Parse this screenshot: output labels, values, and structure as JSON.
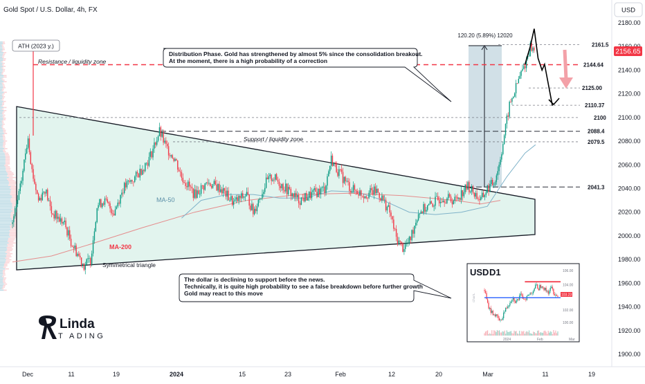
{
  "header": {
    "symbol": "Gold Spot / U.S. Dollar, 4h, FX",
    "currency": "USD"
  },
  "colors": {
    "up": "#089981",
    "down": "#f23645",
    "triangle_fill": "#e2f4ee",
    "box_fill": "#c9dbe3",
    "ma50": "#7fb2c9",
    "ma200": "#e58c8c",
    "price_tag": "#f23645",
    "resistance": "#f23645",
    "arrow_pink": "#f3a1a8"
  },
  "chart_data": {
    "type": "candlestick",
    "ylim": [
      1890,
      2185
    ],
    "yticks": [
      "2180.00",
      "2160.00",
      "2140.00",
      "2120.00",
      "2100.00",
      "2080.00",
      "2060.00",
      "2040.00",
      "2020.00",
      "2000.00",
      "1980.00",
      "1960.00",
      "1940.00",
      "1920.00",
      "1900.00"
    ],
    "xticks": [
      "Dec",
      "11",
      "19",
      "2024",
      "15",
      "23",
      "Feb",
      "12",
      "20",
      "Mar",
      "11",
      "19"
    ],
    "last_price": "2156.65",
    "price_path": [
      [
        0,
        2010
      ],
      [
        6,
        2040
      ],
      [
        10,
        2070
      ],
      [
        12,
        2085
      ],
      [
        15,
        2055
      ],
      [
        20,
        2030
      ],
      [
        25,
        2040
      ],
      [
        30,
        2020
      ],
      [
        40,
        2010
      ],
      [
        45,
        1995
      ],
      [
        50,
        1985
      ],
      [
        55,
        1975
      ],
      [
        60,
        1980
      ],
      [
        65,
        2025
      ],
      [
        70,
        2030
      ],
      [
        78,
        2020
      ],
      [
        85,
        2040
      ],
      [
        95,
        2050
      ],
      [
        105,
        2065
      ],
      [
        113,
        2088
      ],
      [
        118,
        2075
      ],
      [
        125,
        2065
      ],
      [
        130,
        2050
      ],
      [
        140,
        2035
      ],
      [
        150,
        2045
      ],
      [
        160,
        2040
      ],
      [
        170,
        2028
      ],
      [
        180,
        2035
      ],
      [
        185,
        2020
      ],
      [
        195,
        2045
      ],
      [
        200,
        2050
      ],
      [
        210,
        2040
      ],
      [
        220,
        2030
      ],
      [
        230,
        2035
      ],
      [
        240,
        2040
      ],
      [
        245,
        2065
      ],
      [
        250,
        2055
      ],
      [
        260,
        2040
      ],
      [
        270,
        2035
      ],
      [
        280,
        2038
      ],
      [
        285,
        2030
      ],
      [
        290,
        2020
      ],
      [
        295,
        1998
      ],
      [
        300,
        1990
      ],
      [
        305,
        1995
      ],
      [
        312,
        2020
      ],
      [
        320,
        2025
      ],
      [
        330,
        2033
      ],
      [
        340,
        2030
      ],
      [
        350,
        2042
      ],
      [
        360,
        2030
      ],
      [
        365,
        2040
      ],
      [
        370,
        2045
      ],
      [
        374,
        2060
      ],
      [
        378,
        2085
      ],
      [
        382,
        2110
      ],
      [
        386,
        2122
      ],
      [
        390,
        2135
      ],
      [
        394,
        2145
      ],
      [
        398,
        2160
      ],
      [
        401,
        2156.65
      ]
    ],
    "ma50_path": [
      [
        130,
        2015
      ],
      [
        145,
        2030
      ],
      [
        165,
        2035
      ],
      [
        185,
        2035
      ],
      [
        205,
        2032
      ],
      [
        225,
        2032
      ],
      [
        245,
        2038
      ],
      [
        265,
        2037
      ],
      [
        285,
        2030
      ],
      [
        305,
        2020
      ],
      [
        325,
        2018
      ],
      [
        345,
        2020
      ],
      [
        365,
        2025
      ],
      [
        380,
        2050
      ],
      [
        394,
        2070
      ],
      [
        402,
        2077
      ]
    ],
    "ma200_path": [
      [
        0,
        1978
      ],
      [
        30,
        1983
      ],
      [
        60,
        1993
      ],
      [
        100,
        2007
      ],
      [
        140,
        2020
      ],
      [
        180,
        2030
      ],
      [
        220,
        2035
      ],
      [
        260,
        2036
      ],
      [
        300,
        2034
      ],
      [
        340,
        2030
      ],
      [
        360,
        2027
      ],
      [
        375,
        2030
      ]
    ],
    "levels": [
      {
        "label": "2161.5",
        "value": 2161.5,
        "style": "dashed"
      },
      {
        "label": "2144.64",
        "value": 2144.64,
        "style": "resistance"
      },
      {
        "label": "2125.00",
        "value": 2125.0,
        "style": "dashed"
      },
      {
        "label": "2110.37",
        "value": 2110.37,
        "style": "dashed"
      },
      {
        "label": "2100",
        "value": 2100,
        "style": "dashed"
      },
      {
        "label": "2088.4",
        "value": 2088.4,
        "style": "long-dash"
      },
      {
        "label": "2079.5",
        "value": 2079.5,
        "style": "dashed"
      },
      {
        "label": "2041.3",
        "value": 2041.3,
        "style": "long-dash"
      }
    ],
    "annotations": {
      "ath_label": "ATH (2023 y.)",
      "resistance_label": "Resistance / liquidity zone",
      "support_label": "Support / liquidity zone",
      "triangle_label": "Symmetrical triangle",
      "ma50_label": "MA-50",
      "ma200_label": "MA-200",
      "measure_label": "120.20 (5.89%) 12020",
      "note_top": [
        "Distribution Phase. Gold has strengthened by almost 5% since the consolidation breakout.",
        "At the moment, there is a high probability of a correction"
      ],
      "note_bottom": [
        "The dollar is declining to support before the news.",
        "Technically, it is quite high probability to see a false breakdown before further growth",
        "Gold may react to this move"
      ]
    },
    "projection": [
      [
        394,
        2145
      ],
      [
        398,
        2160
      ],
      [
        401,
        2175
      ],
      [
        404,
        2150
      ],
      [
        407,
        2140
      ],
      [
        409,
        2145
      ],
      [
        415,
        2110
      ]
    ],
    "inset": {
      "title": "USD",
      "timeframe": "D1",
      "yticks": [
        "106.00",
        "104.00",
        "102.00",
        "100.00"
      ],
      "xticks": [
        "2024",
        "Feb",
        "Mar"
      ],
      "y_side_label": "ChartL",
      "last_value": "103.23",
      "price_path": [
        [
          0,
          104.0
        ],
        [
          3,
          102.5
        ],
        [
          6,
          101.8
        ],
        [
          10,
          101.4
        ],
        [
          13,
          101.0
        ],
        [
          15,
          100.7
        ],
        [
          18,
          101.6
        ],
        [
          22,
          102.4
        ],
        [
          26,
          103.2
        ],
        [
          30,
          102.8
        ],
        [
          34,
          103.4
        ],
        [
          38,
          103.1
        ],
        [
          42,
          103.5
        ],
        [
          46,
          104.0
        ],
        [
          48,
          104.4
        ],
        [
          51,
          104.2
        ],
        [
          54,
          104.6
        ],
        [
          57,
          104.0
        ],
        [
          60,
          103.8
        ],
        [
          63,
          104.2
        ],
        [
          66,
          103.6
        ],
        [
          69,
          103.3
        ]
      ],
      "resistance": 104.85,
      "support": 103.2
    }
  }
}
